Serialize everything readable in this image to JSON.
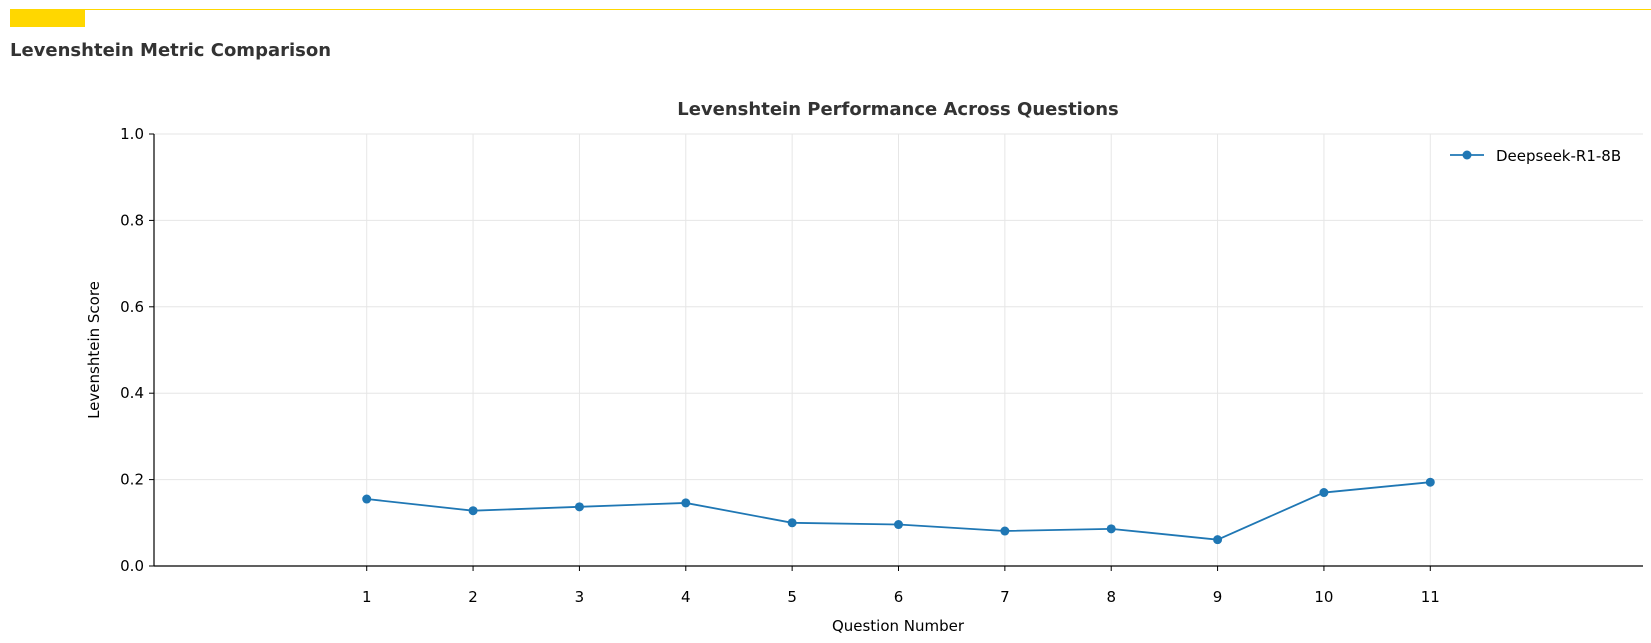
{
  "header": {
    "title": "Levenshtein Metric Comparison",
    "accent_color": "#FFD700"
  },
  "chart_data": {
    "type": "line",
    "title": "Levenshtein Performance Across Questions",
    "xlabel": "Question Number",
    "ylabel": "Levenshtein Score",
    "x": [
      1,
      2,
      3,
      4,
      5,
      6,
      7,
      8,
      9,
      10,
      11
    ],
    "xlim": [
      -1,
      13
    ],
    "ylim": [
      0,
      1.0
    ],
    "yticks": [
      "0.0",
      "0.2",
      "0.4",
      "0.6",
      "0.8",
      "1.0"
    ],
    "grid": true,
    "legend_position": "top-right",
    "series": [
      {
        "name": "Deepseek-R1-8B",
        "color": "#1f77b4",
        "values": [
          0.155,
          0.128,
          0.137,
          0.146,
          0.1,
          0.096,
          0.081,
          0.086,
          0.061,
          0.17,
          0.194
        ]
      }
    ]
  }
}
